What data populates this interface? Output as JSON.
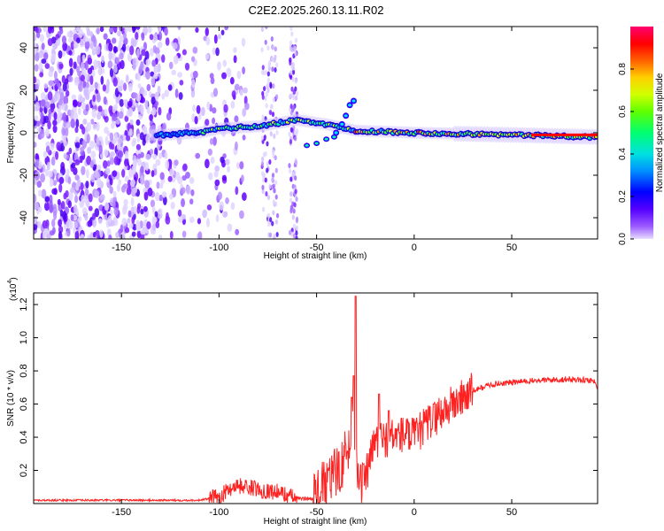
{
  "title": "C2E2.2025.260.13.11.R02",
  "chart_data": [
    {
      "type": "heatmap",
      "xlabel": "Height of straight line (km)",
      "ylabel": "Frequency (Hz)",
      "xlim": [
        -195,
        94
      ],
      "ylim": [
        -50,
        50
      ],
      "xticks": [
        -150,
        -100,
        -50,
        0,
        50
      ],
      "yticks": [
        -40,
        -20,
        0,
        20,
        40
      ],
      "colorbar": {
        "label": "Normalized spectral amplitude",
        "range": [
          0,
          1
        ],
        "ticks": [
          0.0,
          0.2,
          0.4,
          0.6,
          0.8
        ],
        "colors": [
          "#d8c8ff",
          "#6a00ff",
          "#0000ff",
          "#00c8ff",
          "#00ff80",
          "#80ff00",
          "#ffff00",
          "#ff8000",
          "#ff0000",
          "#ff0080"
        ]
      },
      "ridge_centerline_hz": [
        {
          "x": -130,
          "y": -1
        },
        {
          "x": -110,
          "y": 0
        },
        {
          "x": -100,
          "y": 2
        },
        {
          "x": -80,
          "y": 3
        },
        {
          "x": -60,
          "y": 6
        },
        {
          "x": -45,
          "y": 4
        },
        {
          "x": -30,
          "y": 1
        },
        {
          "x": 0,
          "y": 0
        },
        {
          "x": 50,
          "y": -1
        },
        {
          "x": 94,
          "y": -2
        }
      ],
      "noise_band_end_x": -105,
      "sparse_columns_x": [
        [
          -78,
          -70
        ],
        [
          -64,
          -60
        ]
      ]
    },
    {
      "type": "line",
      "xlabel": "Height of straight line (km)",
      "ylabel": "SNR (10 * v/v)",
      "scale_label": "(x10",
      "scale_exponent": "4",
      "xlim": [
        -195,
        94
      ],
      "ylim": [
        0,
        1.27
      ],
      "xticks": [
        -150,
        -100,
        -50,
        0,
        50
      ],
      "yticks": [
        0.2,
        0.4,
        0.6,
        0.8,
        1.0,
        1.2
      ],
      "series": [
        {
          "color": "#ff2020",
          "envelope": [
            {
              "x": -195,
              "y": 0.02
            },
            {
              "x": -110,
              "y": 0.02
            },
            {
              "x": -100,
              "y": 0.04
            },
            {
              "x": -92,
              "y": 0.11
            },
            {
              "x": -85,
              "y": 0.1
            },
            {
              "x": -78,
              "y": 0.08
            },
            {
              "x": -70,
              "y": 0.07
            },
            {
              "x": -60,
              "y": 0.03
            },
            {
              "x": -52,
              "y": 0.03
            },
            {
              "x": -45,
              "y": 0.12
            },
            {
              "x": -38,
              "y": 0.22
            },
            {
              "x": -33,
              "y": 0.35
            },
            {
              "x": -31,
              "y": 0.55
            },
            {
              "x": -28,
              "y": 0.1
            },
            {
              "x": -25,
              "y": 0.15
            },
            {
              "x": -20,
              "y": 0.38
            },
            {
              "x": -12,
              "y": 0.4
            },
            {
              "x": -5,
              "y": 0.42
            },
            {
              "x": 0,
              "y": 0.4
            },
            {
              "x": 10,
              "y": 0.52
            },
            {
              "x": 20,
              "y": 0.6
            },
            {
              "x": 30,
              "y": 0.68
            },
            {
              "x": 40,
              "y": 0.72
            },
            {
              "x": 60,
              "y": 0.74
            },
            {
              "x": 80,
              "y": 0.75
            },
            {
              "x": 92,
              "y": 0.74
            },
            {
              "x": 94,
              "y": 0.7
            }
          ],
          "peaks": [
            {
              "x": -30,
              "y": 1.25
            },
            {
              "x": -31,
              "y": 0.77
            },
            {
              "x": -32,
              "y": 0.64
            },
            {
              "x": -18,
              "y": 0.66
            },
            {
              "x": -13,
              "y": 0.56
            },
            {
              "x": 10,
              "y": 0.6
            }
          ]
        }
      ]
    }
  ]
}
